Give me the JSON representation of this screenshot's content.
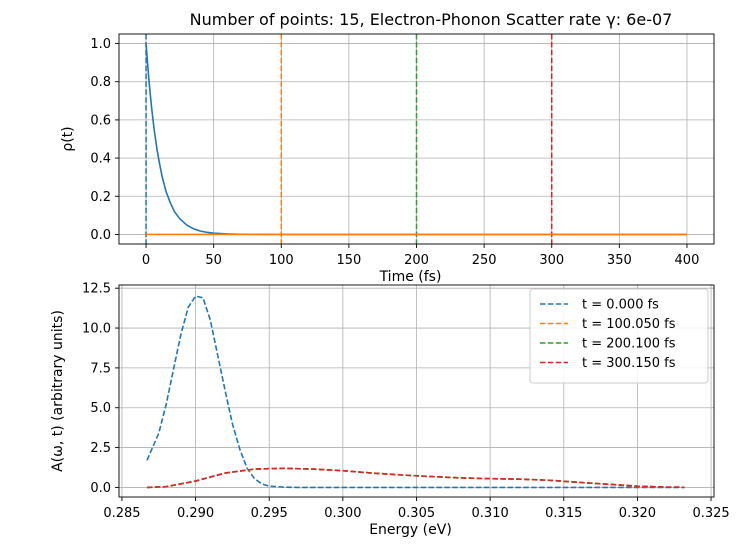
{
  "figure_title": "Number of points: 15, Electron-Phonon Scatter rate γ: 6e-07",
  "chart_data": [
    {
      "type": "line",
      "title": "Number of points: 15, Electron-Phonon Scatter rate γ: 6e-07",
      "xlabel": "Time (fs)",
      "ylabel": "ρ(t)",
      "xlim": [
        -20,
        420
      ],
      "ylim": [
        -0.05,
        1.05
      ],
      "xticks": [
        0,
        50,
        100,
        150,
        200,
        250,
        300,
        350,
        400
      ],
      "yticks": [
        0.0,
        0.2,
        0.4,
        0.6,
        0.8,
        1.0
      ],
      "ytick_labels": [
        "0.0",
        "0.2",
        "0.4",
        "0.6",
        "0.8",
        "1.0"
      ],
      "grid": true,
      "series": [
        {
          "name": "rho decay",
          "color": "#1f77b4",
          "style": "solid",
          "x": [
            0,
            2,
            4,
            6,
            8,
            10,
            12,
            15,
            18,
            21,
            25,
            30,
            35,
            40,
            45,
            50,
            60,
            70,
            100,
            200,
            300,
            400
          ],
          "y": [
            1.0,
            0.82,
            0.67,
            0.55,
            0.45,
            0.37,
            0.3,
            0.22,
            0.165,
            0.12,
            0.082,
            0.05,
            0.03,
            0.018,
            0.011,
            0.007,
            0.003,
            0.001,
            0.0,
            0.0,
            0.0,
            0.0
          ]
        },
        {
          "name": "rho baseline",
          "color": "#ff7f0e",
          "style": "solid",
          "x": [
            0,
            400
          ],
          "y": [
            0.0,
            0.0
          ]
        }
      ],
      "vlines": [
        {
          "x": 0,
          "color": "#1f77b4"
        },
        {
          "x": 100,
          "color": "#ff7f0e"
        },
        {
          "x": 200,
          "color": "#2ca02c"
        },
        {
          "x": 300,
          "color": "#d62728"
        }
      ]
    },
    {
      "type": "line",
      "title": "",
      "xlabel": "Energy (eV)",
      "ylabel": "A(ω, t) (arbitrary units)",
      "xlim": [
        0.2848,
        0.3252
      ],
      "ylim": [
        -0.6,
        12.7
      ],
      "xticks": [
        0.285,
        0.29,
        0.295,
        0.3,
        0.305,
        0.31,
        0.315,
        0.32,
        0.325
      ],
      "xtick_labels": [
        "0.285",
        "0.290",
        "0.295",
        "0.300",
        "0.305",
        "0.310",
        "0.315",
        "0.320",
        "0.325"
      ],
      "yticks": [
        0.0,
        2.5,
        5.0,
        7.5,
        10.0,
        12.5
      ],
      "ytick_labels": [
        "0.0",
        "2.5",
        "5.0",
        "7.5",
        "10.0",
        "12.5"
      ],
      "grid": true,
      "legend_position": "top-right",
      "series": [
        {
          "name": "t = 0.000 fs",
          "color": "#1f77b4",
          "style": "dashed",
          "x": [
            0.2867,
            0.2875,
            0.288,
            0.2885,
            0.289,
            0.2895,
            0.29,
            0.2905,
            0.291,
            0.2915,
            0.292,
            0.2925,
            0.293,
            0.2935,
            0.294,
            0.2945,
            0.295,
            0.296,
            0.297,
            0.299,
            0.305,
            0.315,
            0.3232
          ],
          "y": [
            1.7,
            3.4,
            5.2,
            7.4,
            9.6,
            11.3,
            12.0,
            11.9,
            10.5,
            8.3,
            6.1,
            4.0,
            2.4,
            1.2,
            0.55,
            0.22,
            0.08,
            0.02,
            0.0,
            0.0,
            0.0,
            0.0,
            0.0
          ]
        },
        {
          "name": "t = 100.050 fs",
          "color": "#ff7f0e",
          "style": "dashed",
          "x": [
            0.2867,
            0.288,
            0.29,
            0.292,
            0.294,
            0.296,
            0.298,
            0.3,
            0.302,
            0.304,
            0.306,
            0.308,
            0.31,
            0.312,
            0.314,
            0.316,
            0.318,
            0.32,
            0.322,
            0.3232
          ],
          "y": [
            0.0,
            0.05,
            0.4,
            0.9,
            1.15,
            1.2,
            1.15,
            1.05,
            0.9,
            0.78,
            0.68,
            0.6,
            0.55,
            0.52,
            0.45,
            0.32,
            0.2,
            0.08,
            0.02,
            0.01
          ]
        },
        {
          "name": "t = 200.100 fs",
          "color": "#2ca02c",
          "style": "dashed",
          "x": [
            0.2867,
            0.288,
            0.29,
            0.292,
            0.294,
            0.296,
            0.298,
            0.3,
            0.302,
            0.304,
            0.306,
            0.308,
            0.31,
            0.312,
            0.314,
            0.316,
            0.318,
            0.32,
            0.322,
            0.3232
          ],
          "y": [
            0.0,
            0.05,
            0.4,
            0.9,
            1.15,
            1.2,
            1.15,
            1.05,
            0.9,
            0.78,
            0.68,
            0.6,
            0.55,
            0.52,
            0.45,
            0.32,
            0.2,
            0.08,
            0.02,
            0.01
          ]
        },
        {
          "name": "t = 300.150 fs",
          "color": "#d62728",
          "style": "dashed",
          "x": [
            0.2867,
            0.288,
            0.29,
            0.292,
            0.294,
            0.296,
            0.298,
            0.3,
            0.302,
            0.304,
            0.306,
            0.308,
            0.31,
            0.312,
            0.314,
            0.316,
            0.318,
            0.32,
            0.322,
            0.3232
          ],
          "y": [
            0.0,
            0.05,
            0.4,
            0.9,
            1.15,
            1.2,
            1.15,
            1.05,
            0.9,
            0.78,
            0.68,
            0.6,
            0.55,
            0.52,
            0.45,
            0.32,
            0.2,
            0.08,
            0.02,
            0.01
          ]
        }
      ]
    }
  ]
}
